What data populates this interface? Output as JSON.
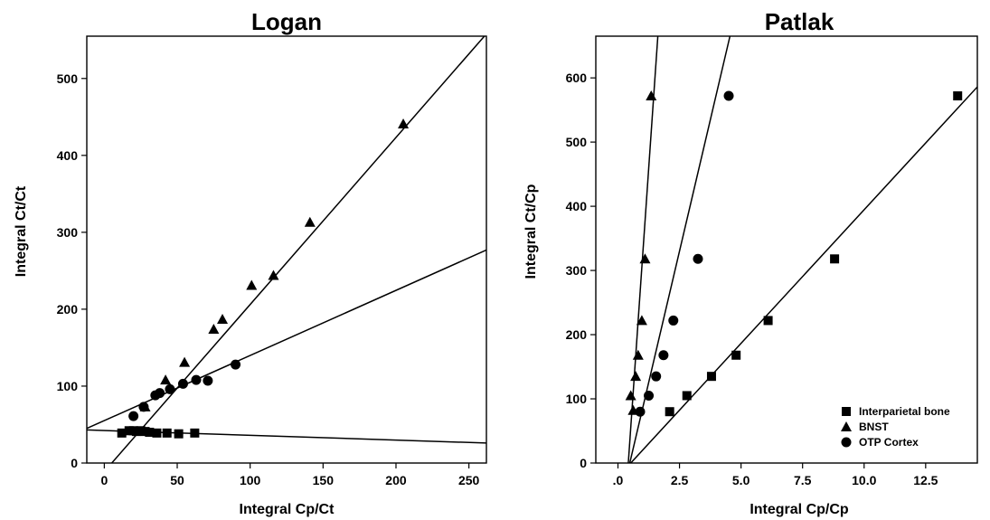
{
  "chart_data": [
    {
      "type": "scatter",
      "title": "Logan",
      "xlabel": "Integral Cp/Ct",
      "ylabel": "Integral Ct/Ct",
      "xlim": [
        -12,
        262
      ],
      "ylim": [
        0,
        555
      ],
      "xticks": [
        0,
        50,
        100,
        150,
        200,
        250
      ],
      "yticks": [
        0,
        100,
        200,
        300,
        400,
        500
      ],
      "grid": false,
      "series": [
        {
          "marker": "triangle",
          "x": [
            28,
            42,
            55,
            75,
            81,
            101,
            116,
            141,
            205
          ],
          "y": [
            73,
            108,
            131,
            174,
            187,
            231,
            244,
            313,
            441
          ],
          "fit": {
            "x": [
              -5,
              262
            ],
            "y": [
              -22,
              558
            ]
          }
        },
        {
          "marker": "circle",
          "x": [
            20,
            27,
            35,
            38,
            45,
            54,
            63,
            71,
            90
          ],
          "y": [
            61,
            73,
            88,
            91,
            96,
            103,
            108,
            107,
            128
          ],
          "fit": {
            "x": [
              -12,
              262
            ],
            "y": [
              45,
              277
            ]
          }
        },
        {
          "marker": "square",
          "x": [
            12,
            17,
            20,
            22,
            25,
            28,
            31,
            36,
            43,
            51,
            62
          ],
          "y": [
            39,
            42,
            42,
            41,
            42,
            41,
            40,
            39,
            39,
            38,
            39
          ],
          "fit": {
            "x": [
              -12,
              262
            ],
            "y": [
              43,
              26
            ]
          }
        }
      ]
    },
    {
      "type": "scatter",
      "title": "Patlak",
      "xlabel": "Integral Cp/Cp",
      "ylabel": "Integral Ct/Cp",
      "xlim": [
        -0.9,
        14.6
      ],
      "ylim": [
        0,
        665
      ],
      "xticks": [
        0,
        2.5,
        5,
        7.5,
        10,
        12.5
      ],
      "xtick_labels": [
        ".0",
        "2.5",
        "5.0",
        "7.5",
        "10.0",
        "12.5"
      ],
      "yticks": [
        0,
        100,
        200,
        300,
        400,
        500,
        600
      ],
      "grid": false,
      "legend": {
        "position": "bottom-right",
        "entries": [
          {
            "marker": "square",
            "label": "Interparietal bone"
          },
          {
            "marker": "triangle",
            "label": "BNST"
          },
          {
            "marker": "circle",
            "label": "OTP Cortex"
          }
        ]
      },
      "series": [
        {
          "marker": "square",
          "x": [
            2.1,
            2.8,
            3.8,
            4.8,
            6.1,
            8.8,
            13.8
          ],
          "y": [
            80,
            105,
            135,
            168,
            222,
            318,
            572
          ],
          "fit": {
            "x": [
              0.52,
              14.6
            ],
            "y": [
              0,
              586
            ]
          }
        },
        {
          "marker": "triangle",
          "x": [
            0.52,
            0.62,
            0.72,
            0.82,
            0.97,
            1.1,
            1.35
          ],
          "y": [
            105,
            82,
            135,
            168,
            222,
            318,
            572
          ],
          "fit": {
            "x": [
              0.42,
              1.62
            ],
            "y": [
              0,
              665
            ]
          }
        },
        {
          "marker": "circle",
          "x": [
            0.9,
            1.25,
            1.55,
            1.85,
            2.25,
            3.25,
            4.5
          ],
          "y": [
            80,
            105,
            135,
            168,
            222,
            318,
            572
          ],
          "fit": {
            "x": [
              0.48,
              4.55
            ],
            "y": [
              0,
              665
            ]
          }
        }
      ]
    }
  ]
}
